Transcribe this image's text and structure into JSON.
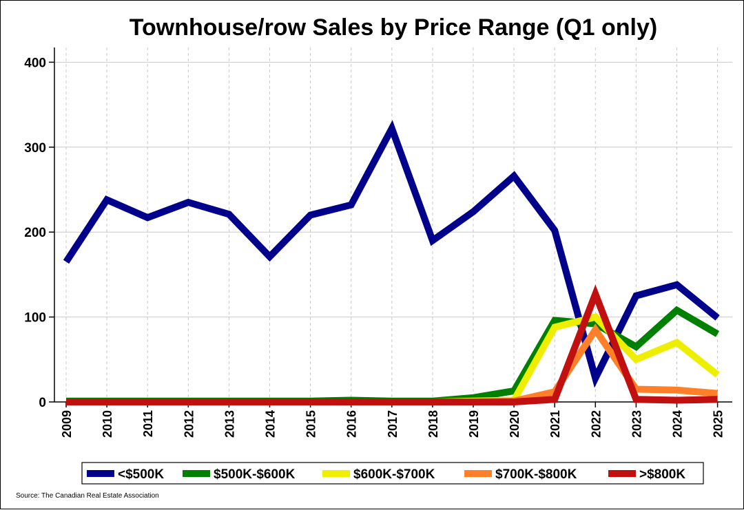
{
  "chart_data": {
    "type": "line",
    "title": "Townhouse/row Sales by Price Range (Q1 only)",
    "xlabel": "",
    "ylabel": "",
    "x": [
      "2009",
      "2010",
      "2011",
      "2012",
      "2013",
      "2014",
      "2015",
      "2016",
      "2017",
      "2018",
      "2019",
      "2020",
      "2021",
      "2022",
      "2023",
      "2024",
      "2025"
    ],
    "yticks": [
      "0",
      "100",
      "200",
      "300",
      "400"
    ],
    "ylim": [
      0,
      400
    ],
    "grid": true,
    "legend_position": "bottom",
    "series": [
      {
        "name": "<$500K",
        "color": "#00008b",
        "values": [
          165,
          238,
          217,
          235,
          221,
          171,
          220,
          232,
          322,
          190,
          224,
          266,
          202,
          28,
          125,
          138,
          99
        ]
      },
      {
        "name": "$500K-$600K",
        "color": "#008000",
        "values": [
          1,
          1,
          1,
          1,
          1,
          1,
          1,
          2,
          1,
          1,
          5,
          13,
          96,
          92,
          65,
          108,
          80
        ]
      },
      {
        "name": "$600K-$700K",
        "color": "#eeee00",
        "values": [
          0,
          0,
          0,
          0,
          0,
          0,
          0,
          0,
          0,
          0,
          1,
          2,
          88,
          100,
          50,
          70,
          32
        ]
      },
      {
        "name": "$700K-$800K",
        "color": "#ff8028",
        "values": [
          0,
          0,
          0,
          0,
          0,
          0,
          0,
          0,
          0,
          0,
          0,
          1,
          12,
          85,
          15,
          14,
          10
        ]
      },
      {
        "name": ">$800K",
        "color": "#c01010",
        "values": [
          0,
          0,
          0,
          0,
          0,
          0,
          0,
          0,
          0,
          0,
          0,
          0,
          3,
          127,
          3,
          2,
          3
        ]
      }
    ],
    "source": "Source: The Canadian Real Estate Association"
  }
}
